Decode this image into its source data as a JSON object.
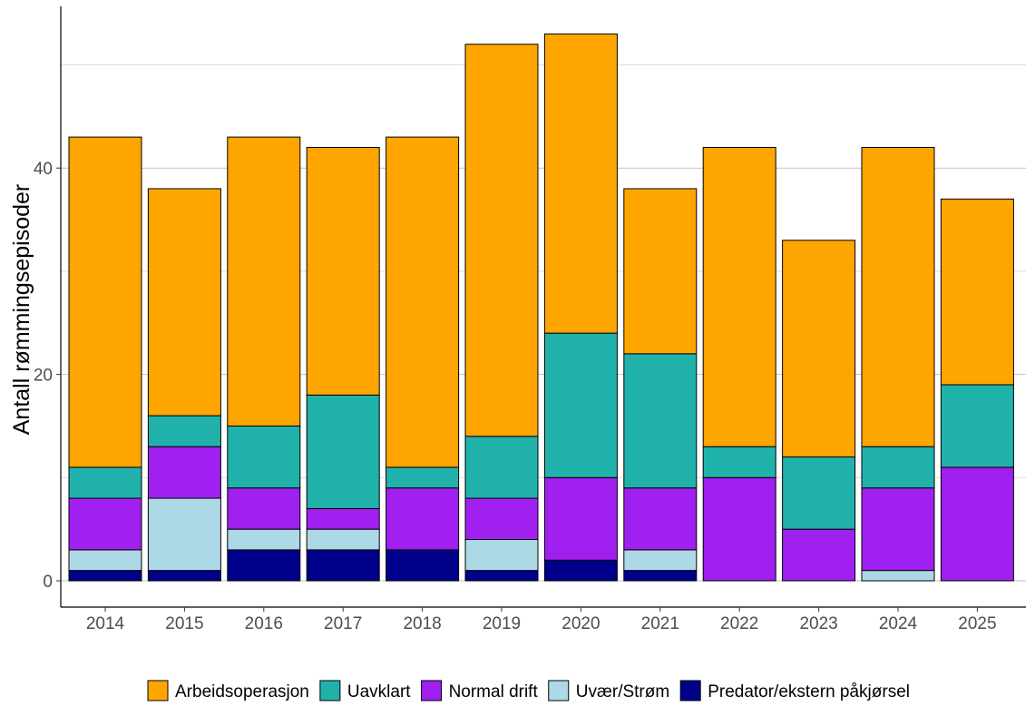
{
  "chart_data": {
    "type": "bar",
    "stacked": true,
    "title": "",
    "xlabel": "",
    "ylabel": "Antall rømmingsepisoder",
    "ylim": [
      0,
      54
    ],
    "yticks": [
      0,
      20,
      40
    ],
    "grid": true,
    "legend_position": "bottom",
    "categories": [
      "2014",
      "2015",
      "2016",
      "2017",
      "2018",
      "2019",
      "2020",
      "2021",
      "2022",
      "2023",
      "2024",
      "2025"
    ],
    "series": [
      {
        "name": "Predator/ekstern påkjørsel",
        "color": "#00008B",
        "values": [
          1,
          1,
          3,
          3,
          3,
          1,
          2,
          1,
          0,
          0,
          0,
          0
        ]
      },
      {
        "name": "Uvær/Strøm",
        "color": "#ADD8E6",
        "values": [
          2,
          7,
          2,
          2,
          0,
          3,
          0,
          2,
          0,
          0,
          1,
          0
        ]
      },
      {
        "name": "Normal drift",
        "color": "#A020F0",
        "values": [
          5,
          5,
          4,
          2,
          6,
          4,
          8,
          6,
          10,
          5,
          8,
          11
        ]
      },
      {
        "name": "Uavklart",
        "color": "#20B2AA",
        "values": [
          3,
          3,
          6,
          11,
          2,
          6,
          14,
          13,
          3,
          7,
          4,
          8
        ]
      },
      {
        "name": "Arbeidsoperasjon",
        "color": "#FFA500",
        "values": [
          32,
          22,
          28,
          24,
          32,
          38,
          29,
          16,
          29,
          21,
          29,
          18
        ]
      }
    ],
    "legend_order": [
      "Arbeidsoperasjon",
      "Uavklart",
      "Normal drift",
      "Uvær/Strøm",
      "Predator/ekstern påkjørsel"
    ]
  }
}
